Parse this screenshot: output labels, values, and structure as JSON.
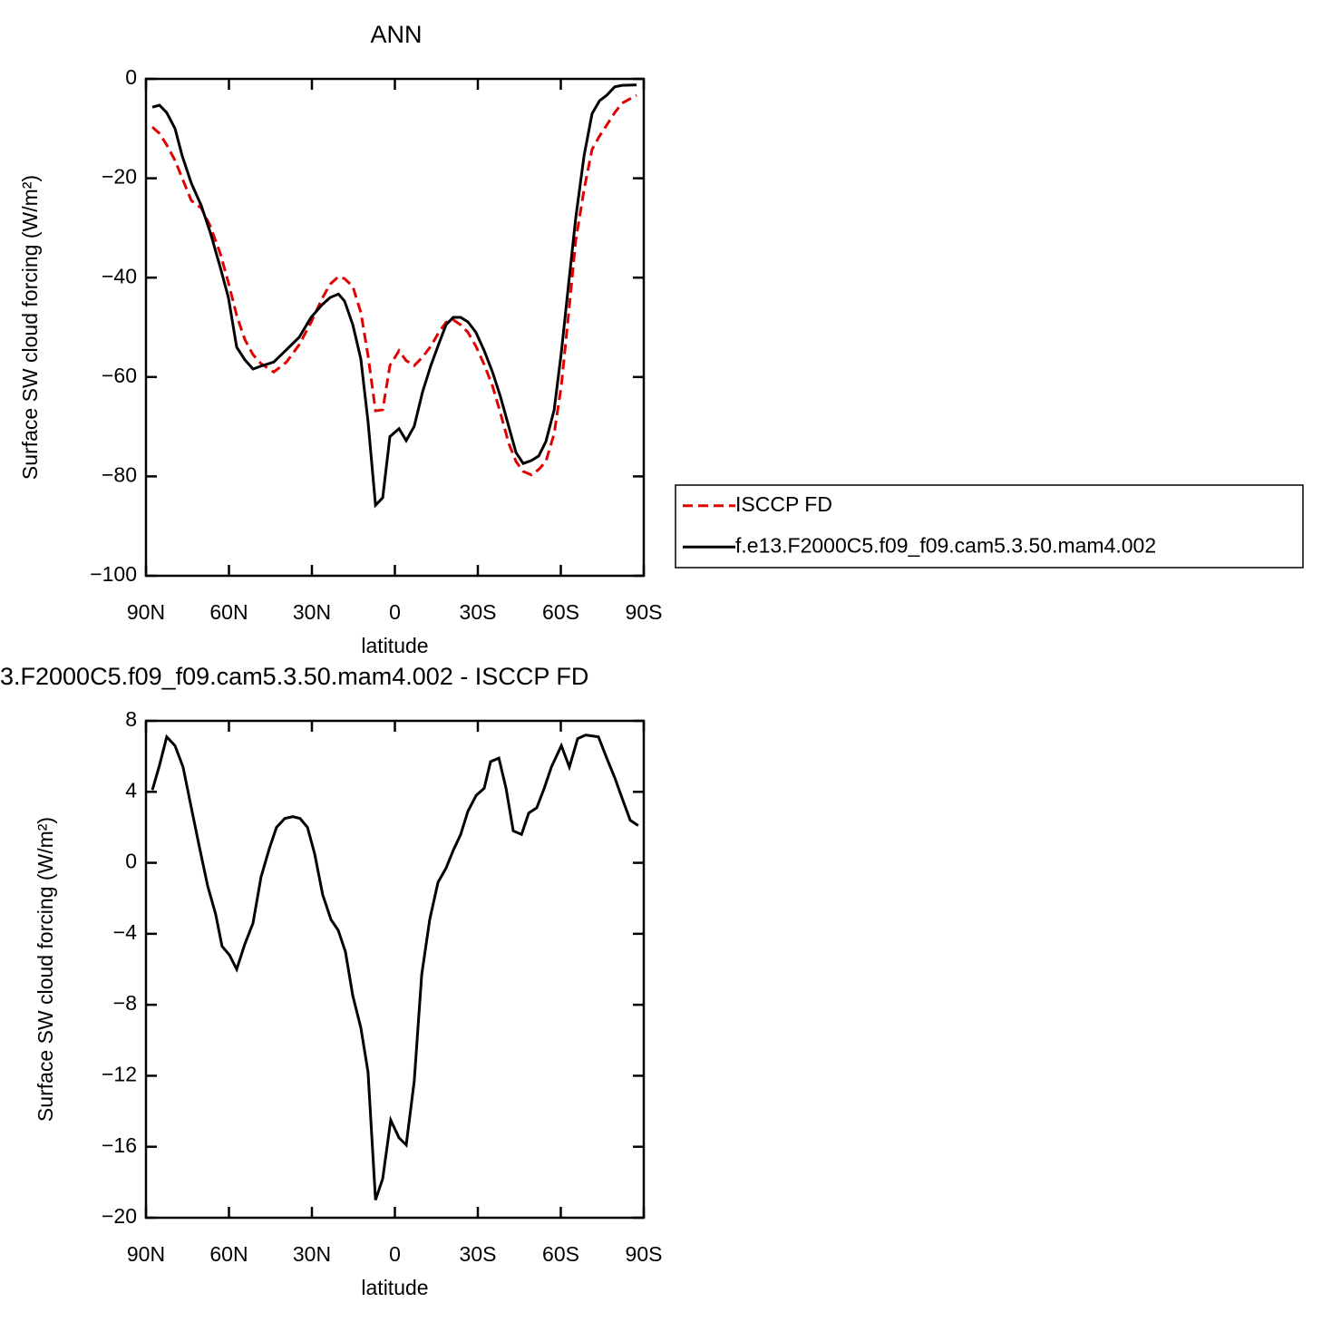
{
  "chart_data": [
    {
      "type": "line",
      "title": "ANN",
      "x_label": "latitude",
      "y_label": "Surface SW cloud forcing (W/m²)",
      "xlim": [
        90,
        -90
      ],
      "ylim": [
        -100,
        0
      ],
      "xticks": [
        {
          "value": 90,
          "label": "90N"
        },
        {
          "value": 60,
          "label": "60N"
        },
        {
          "value": 30,
          "label": "30N"
        },
        0,
        {
          "value": -30,
          "label": "30S"
        },
        {
          "value": -60,
          "label": "60S"
        },
        {
          "value": -90,
          "label": "90S"
        }
      ],
      "yticks": [
        {
          "value": -100,
          "label": "−100"
        },
        {
          "value": -80,
          "label": "−80"
        },
        {
          "value": -60,
          "label": "−60"
        },
        {
          "value": -40,
          "label": "−40"
        },
        {
          "value": -20,
          "label": "−20"
        },
        0
      ],
      "legend": "right",
      "x": [
        87.7,
        85.1,
        82.5,
        79.5,
        76.9,
        73.6,
        70.0,
        66.7,
        63.1,
        60.2,
        57.2,
        54.3,
        51.3,
        48.4,
        43.8,
        39.2,
        34.6,
        30.3,
        26.4,
        23.4,
        20.4,
        18.2,
        15.2,
        12.3,
        9.7,
        7.0,
        4.4,
        1.8,
        -1.5,
        -4.1,
        -7.0,
        -10.0,
        -13.0,
        -15.9,
        -18.5,
        -21.1,
        -23.8,
        -26.4,
        -29.3,
        -32.3,
        -35.3,
        -38.2,
        -41.2,
        -43.8,
        -46.4,
        -49.4,
        -52.0,
        -54.6,
        -57.6,
        -60.2,
        -62.8,
        -65.4,
        -68.4,
        -71.3,
        -74.0,
        -76.6,
        -79.5,
        -82.1,
        -87.4
      ],
      "series": [
        {
          "name": "ISCCP FD",
          "color": "#e00000",
          "dashed": true,
          "values": [
            -9.7,
            -11,
            -13.3,
            -16.4,
            -20,
            -24.5,
            -26,
            -29.7,
            -35.2,
            -41,
            -47.6,
            -52.4,
            -55.5,
            -57.3,
            -59,
            -57,
            -53.5,
            -49,
            -44.3,
            -41.3,
            -39.8,
            -40.2,
            -41.8,
            -47,
            -55.7,
            -66.8,
            -66.6,
            -57.7,
            -54.7,
            -56.7,
            -57.7,
            -56,
            -53.8,
            -51,
            -49,
            -48.5,
            -49.5,
            -51,
            -53.8,
            -57.5,
            -61.8,
            -67.3,
            -73.4,
            -77,
            -79,
            -79.7,
            -78.6,
            -77,
            -71.4,
            -61.7,
            -47.4,
            -32.5,
            -22.3,
            -14.2,
            -11.5,
            -9.3,
            -6.8,
            -4.9,
            -3.3
          ]
        },
        {
          "name": "f.e13.F2000C5.f09_f09.cam5.3.50.mam4.002",
          "color": "#000000",
          "dashed": false,
          "values": [
            -5.7,
            -5.3,
            -6.8,
            -10,
            -15.5,
            -21,
            -25.5,
            -31,
            -38,
            -44,
            -54,
            -56.5,
            -58.4,
            -57.8,
            -57,
            -54.5,
            -52,
            -48,
            -45.5,
            -44,
            -43.3,
            -44.7,
            -49.5,
            -56.4,
            -69,
            -85.8,
            -84.3,
            -72,
            -70.4,
            -72.8,
            -69.9,
            -63,
            -57.7,
            -53.3,
            -49.5,
            -48,
            -48,
            -48.9,
            -51,
            -54.7,
            -59,
            -64,
            -70,
            -75.2,
            -77.4,
            -76.8,
            -75.9,
            -73,
            -66.6,
            -55,
            -41.4,
            -28,
            -15.5,
            -7,
            -4.4,
            -3.3,
            -1.6,
            -1.3,
            -1.2
          ]
        }
      ]
    },
    {
      "type": "line",
      "title": "3.F2000C5.f09_f09.cam5.3.50.mam4.002 - ISCCP FD",
      "x_label": "latitude",
      "y_label": "Surface SW cloud forcing (W/m²)",
      "xlim": [
        90,
        -90
      ],
      "ylim": [
        -20,
        8
      ],
      "xticks": [
        {
          "value": 90,
          "label": "90N"
        },
        {
          "value": 60,
          "label": "60N"
        },
        {
          "value": 30,
          "label": "30N"
        },
        0,
        {
          "value": -30,
          "label": "30S"
        },
        {
          "value": -60,
          "label": "60S"
        },
        {
          "value": -90,
          "label": "90S"
        }
      ],
      "yticks": [
        {
          "value": -20,
          "label": "−20"
        },
        {
          "value": -16,
          "label": "−16"
        },
        {
          "value": -12,
          "label": "−12"
        },
        {
          "value": -8,
          "label": "−8"
        },
        {
          "value": -4,
          "label": "−4"
        },
        0,
        4,
        8
      ],
      "x": [
        87.7,
        85.1,
        82.5,
        79.5,
        76.6,
        73.6,
        70.7,
        67.7,
        64.8,
        62.5,
        59.8,
        57.2,
        54.3,
        51.3,
        48.4,
        45.4,
        42.8,
        39.8,
        36.9,
        34.3,
        31.6,
        29.0,
        26.1,
        23.1,
        20.5,
        17.9,
        15.2,
        12.3,
        9.7,
        7.0,
        4.4,
        1.5,
        -1.5,
        -4.1,
        -7.0,
        -9.7,
        -12.6,
        -15.6,
        -18.5,
        -21.1,
        -23.8,
        -26.4,
        -29.4,
        -32.3,
        -34.6,
        -37.6,
        -40.2,
        -42.8,
        -45.8,
        -48.4,
        -51.3,
        -54.0,
        -56.6,
        -60.2,
        -63.1,
        -66.1,
        -69.0,
        -73.6,
        -76.6,
        -79.5,
        -82.5,
        -85.1,
        -88.0
      ],
      "series": [
        {
          "color": "#000000",
          "dashed": false,
          "values": [
            4.1,
            5.5,
            7.1,
            6.6,
            5.4,
            3.1,
            0.9,
            -1.3,
            -2.9,
            -4.7,
            -5.2,
            -6,
            -4.6,
            -3.4,
            -0.8,
            0.8,
            2,
            2.5,
            2.6,
            2.5,
            2,
            0.5,
            -1.8,
            -3.2,
            -3.8,
            -5,
            -7.5,
            -9.3,
            -11.8,
            -19,
            -17.8,
            -14.5,
            -15.5,
            -15.9,
            -12.3,
            -6.3,
            -3.2,
            -1.1,
            -0.3,
            0.7,
            1.6,
            2.9,
            3.8,
            4.2,
            5.7,
            5.9,
            4.2,
            1.8,
            1.6,
            2.8,
            3.1,
            4.2,
            5.4,
            6.6,
            5.4,
            7,
            7.2,
            7.1,
            5.9,
            4.8,
            3.5,
            2.4,
            2.1
          ]
        }
      ]
    }
  ]
}
